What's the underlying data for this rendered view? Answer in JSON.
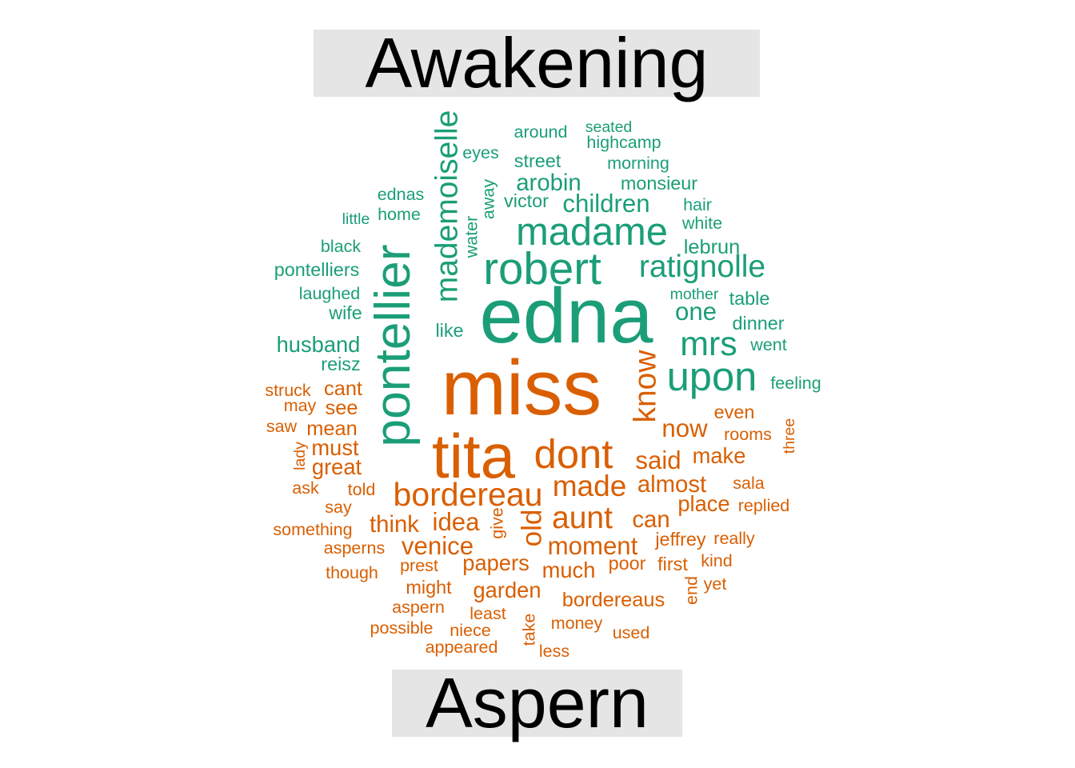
{
  "chart_data": {
    "type": "comparison-wordcloud",
    "groups": [
      {
        "name": "Awakening",
        "color": "#1b9e77"
      },
      {
        "name": "Aspern",
        "color": "#d95f02"
      }
    ],
    "words": [
      {
        "w": "edna",
        "g": 0,
        "s": 5
      },
      {
        "w": "pontellier",
        "g": 0,
        "s": 3.2
      },
      {
        "w": "madame",
        "g": 0,
        "s": 2.5
      },
      {
        "w": "robert",
        "g": 0,
        "s": 2.9
      },
      {
        "w": "mademoiselle",
        "g": 0,
        "s": 2
      },
      {
        "w": "ratignolle",
        "g": 0,
        "s": 2
      },
      {
        "w": "upon",
        "g": 0,
        "s": 2.6
      },
      {
        "w": "mrs",
        "g": 0,
        "s": 2.2
      },
      {
        "w": "children",
        "g": 0,
        "s": 1.6
      },
      {
        "w": "arobin",
        "g": 0,
        "s": 1.5
      },
      {
        "w": "one",
        "g": 0,
        "s": 1.6
      },
      {
        "w": "husband",
        "g": 0,
        "s": 1.4
      },
      {
        "w": "lebrun",
        "g": 0,
        "s": 1.3
      },
      {
        "w": "street",
        "g": 0,
        "s": 1.2
      },
      {
        "w": "monsieur",
        "g": 0,
        "s": 1.2
      },
      {
        "w": "victor",
        "g": 0,
        "s": 1.2
      },
      {
        "w": "like",
        "g": 0,
        "s": 1.2
      },
      {
        "w": "reisz",
        "g": 0,
        "s": 1.2
      },
      {
        "w": "dinner",
        "g": 0,
        "s": 1.2
      },
      {
        "w": "table",
        "g": 0,
        "s": 1.2
      },
      {
        "w": "wife",
        "g": 0,
        "s": 1.2
      },
      {
        "w": "pontelliers",
        "g": 0,
        "s": 1.2
      },
      {
        "w": "laughed",
        "g": 0,
        "s": 1.1
      },
      {
        "w": "black",
        "g": 0,
        "s": 1.1
      },
      {
        "w": "home",
        "g": 0,
        "s": 1.1
      },
      {
        "w": "ednas",
        "g": 0,
        "s": 1.1
      },
      {
        "w": "little",
        "g": 0,
        "s": 1
      },
      {
        "w": "white",
        "g": 0,
        "s": 1.1
      },
      {
        "w": "hair",
        "g": 0,
        "s": 1.1
      },
      {
        "w": "morning",
        "g": 0,
        "s": 1.1
      },
      {
        "w": "highcamp",
        "g": 0,
        "s": 1.1
      },
      {
        "w": "seated",
        "g": 0,
        "s": 1
      },
      {
        "w": "around",
        "g": 0,
        "s": 1.1
      },
      {
        "w": "eyes",
        "g": 0,
        "s": 1.1
      },
      {
        "w": "away",
        "g": 0,
        "s": 1.1
      },
      {
        "w": "water",
        "g": 0,
        "s": 1.1
      },
      {
        "w": "mother",
        "g": 0,
        "s": 1
      },
      {
        "w": "went",
        "g": 0,
        "s": 1.1
      },
      {
        "w": "feeling",
        "g": 0,
        "s": 1.1
      },
      {
        "w": "miss",
        "g": 1,
        "s": 5
      },
      {
        "w": "tita",
        "g": 1,
        "s": 4
      },
      {
        "w": "dont",
        "g": 1,
        "s": 2.6
      },
      {
        "w": "bordereau",
        "g": 1,
        "s": 2.1
      },
      {
        "w": "know",
        "g": 1,
        "s": 2
      },
      {
        "w": "aunt",
        "g": 1,
        "s": 2
      },
      {
        "w": "made",
        "g": 1,
        "s": 1.9
      },
      {
        "w": "said",
        "g": 1,
        "s": 1.6
      },
      {
        "w": "now",
        "g": 1,
        "s": 1.6
      },
      {
        "w": "almost",
        "g": 1,
        "s": 1.5
      },
      {
        "w": "old",
        "g": 1,
        "s": 1.8
      },
      {
        "w": "idea",
        "g": 1,
        "s": 1.6
      },
      {
        "w": "think",
        "g": 1,
        "s": 1.5
      },
      {
        "w": "venice",
        "g": 1,
        "s": 1.6
      },
      {
        "w": "moment",
        "g": 1,
        "s": 1.6
      },
      {
        "w": "can",
        "g": 1,
        "s": 1.5
      },
      {
        "w": "place",
        "g": 1,
        "s": 1.4
      },
      {
        "w": "make",
        "g": 1,
        "s": 1.4
      },
      {
        "w": "papers",
        "g": 1,
        "s": 1.4
      },
      {
        "w": "much",
        "g": 1,
        "s": 1.4
      },
      {
        "w": "garden",
        "g": 1,
        "s": 1.4
      },
      {
        "w": "bordereaus",
        "g": 1,
        "s": 1.3
      },
      {
        "w": "must",
        "g": 1,
        "s": 1.4
      },
      {
        "w": "great",
        "g": 1,
        "s": 1.4
      },
      {
        "w": "mean",
        "g": 1,
        "s": 1.3
      },
      {
        "w": "see",
        "g": 1,
        "s": 1.3
      },
      {
        "w": "cant",
        "g": 1,
        "s": 1.3
      },
      {
        "w": "even",
        "g": 1,
        "s": 1.2
      },
      {
        "w": "rooms",
        "g": 1,
        "s": 1.1
      },
      {
        "w": "sala",
        "g": 1,
        "s": 1.1
      },
      {
        "w": "replied",
        "g": 1,
        "s": 1.1
      },
      {
        "w": "jeffrey",
        "g": 1,
        "s": 1.2
      },
      {
        "w": "really",
        "g": 1,
        "s": 1.1
      },
      {
        "w": "first",
        "g": 1,
        "s": 1.2
      },
      {
        "w": "poor",
        "g": 1,
        "s": 1.2
      },
      {
        "w": "kind",
        "g": 1,
        "s": 1.1
      },
      {
        "w": "yet",
        "g": 1,
        "s": 1.1
      },
      {
        "w": "end",
        "g": 1,
        "s": 1.1
      },
      {
        "w": "three",
        "g": 1,
        "s": 1
      },
      {
        "w": "struck",
        "g": 1,
        "s": 1.1
      },
      {
        "w": "may",
        "g": 1,
        "s": 1.1
      },
      {
        "w": "saw",
        "g": 1,
        "s": 1.1
      },
      {
        "w": "lady",
        "g": 1,
        "s": 1
      },
      {
        "w": "ask",
        "g": 1,
        "s": 1.1
      },
      {
        "w": "told",
        "g": 1,
        "s": 1.1
      },
      {
        "w": "say",
        "g": 1,
        "s": 1.1
      },
      {
        "w": "something",
        "g": 1,
        "s": 1.1
      },
      {
        "w": "asperns",
        "g": 1,
        "s": 1.1
      },
      {
        "w": "though",
        "g": 1,
        "s": 1.1
      },
      {
        "w": "prest",
        "g": 1,
        "s": 1.1
      },
      {
        "w": "might",
        "g": 1,
        "s": 1.2
      },
      {
        "w": "aspern",
        "g": 1,
        "s": 1.1
      },
      {
        "w": "possible",
        "g": 1,
        "s": 1.1
      },
      {
        "w": "niece",
        "g": 1,
        "s": 1.1
      },
      {
        "w": "least",
        "g": 1,
        "s": 1.1
      },
      {
        "w": "appeared",
        "g": 1,
        "s": 1.1
      },
      {
        "w": "take",
        "g": 1,
        "s": 1.1
      },
      {
        "w": "less",
        "g": 1,
        "s": 1.1
      },
      {
        "w": "money",
        "g": 1,
        "s": 1.1
      },
      {
        "w": "used",
        "g": 1,
        "s": 1.1
      },
      {
        "w": "give",
        "g": 1,
        "s": 1.1
      }
    ]
  }
}
